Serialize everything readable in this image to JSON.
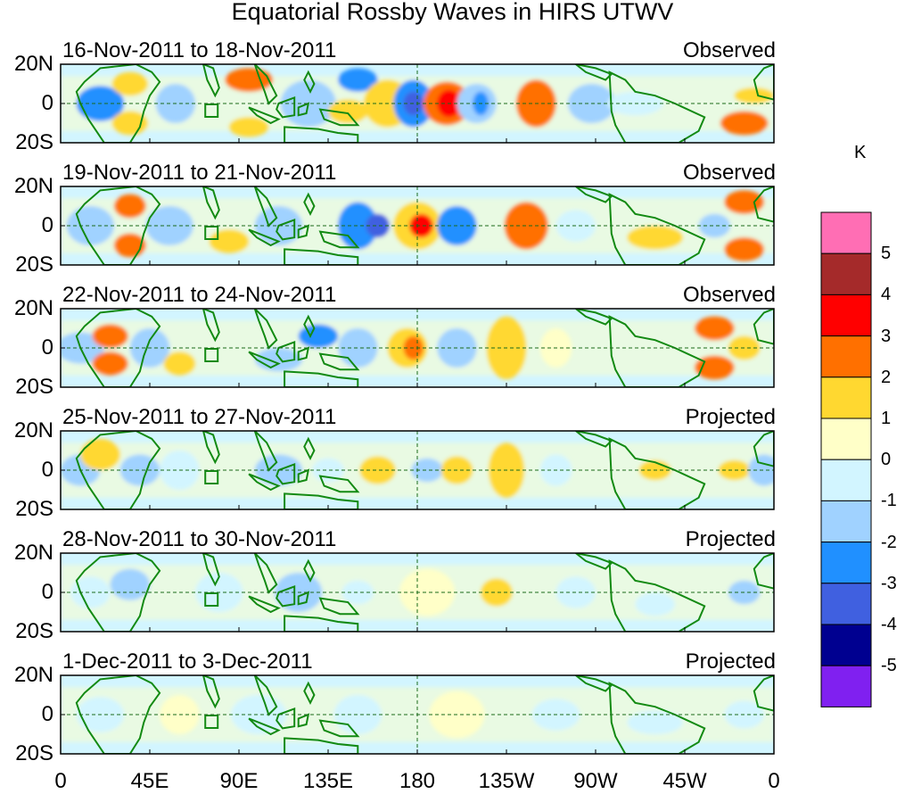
{
  "title": "Equatorial Rossby Waves in HIRS UTWV",
  "panels": [
    {
      "date_range": "16-Nov-2011 to 18-Nov-2011",
      "status": "Observed"
    },
    {
      "date_range": "19-Nov-2011 to 21-Nov-2011",
      "status": "Observed"
    },
    {
      "date_range": "22-Nov-2011 to 24-Nov-2011",
      "status": "Observed"
    },
    {
      "date_range": "25-Nov-2011 to 27-Nov-2011",
      "status": "Projected"
    },
    {
      "date_range": "28-Nov-2011 to 30-Nov-2011",
      "status": "Projected"
    },
    {
      "date_range": "1-Dec-2011 to 3-Dec-2011",
      "status": "Projected"
    }
  ],
  "lat_labels": [
    "20N",
    "0",
    "20S"
  ],
  "lon_labels": [
    "0",
    "45E",
    "90E",
    "135E",
    "180",
    "135W",
    "90W",
    "45W",
    "0"
  ],
  "colorbar": {
    "unit": "K",
    "labels": [
      "5",
      "4",
      "3",
      "2",
      "1",
      "0",
      "-1",
      "-2",
      "-3",
      "-4",
      "-5"
    ],
    "colors": [
      "#ff6eb4",
      "#a52a2a",
      "#ff0000",
      "#ff7000",
      "#ffd830",
      "#ffffc8",
      "#d2f5ff",
      "#a0d2ff",
      "#2090ff",
      "#4060e0",
      "#000090",
      "#8020f0"
    ]
  }
}
